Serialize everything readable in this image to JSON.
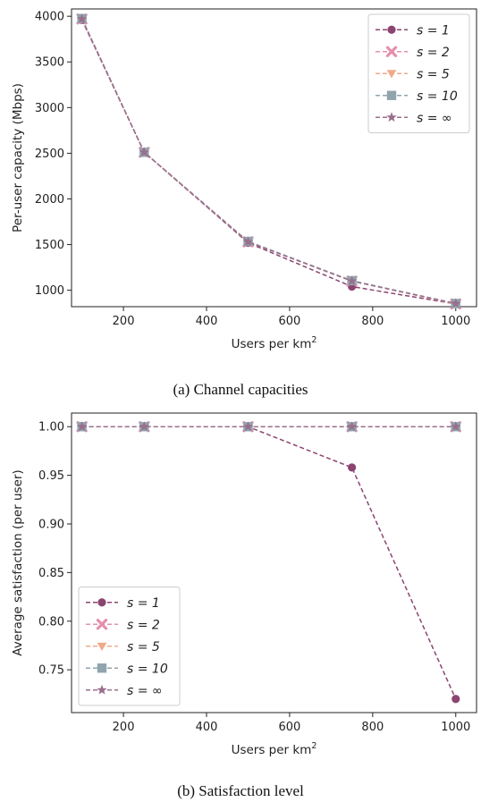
{
  "chart_data": [
    {
      "type": "line",
      "caption": "(a) Channel capacities",
      "xlabel": "Users per km",
      "xlabel_sup": "2",
      "ylabel": "Per-user capacity (Mbps)",
      "xlim": [
        75,
        1050
      ],
      "ylim": [
        820,
        4080
      ],
      "xticks": [
        200,
        400,
        600,
        800,
        1000
      ],
      "yticks": [
        1000,
        1500,
        2000,
        2500,
        3000,
        3500,
        4000
      ],
      "legend_loc": "upper right",
      "x": [
        100,
        250,
        500,
        750,
        1000
      ],
      "series": [
        {
          "name": "s = 1",
          "color": "#8b4570",
          "marker": "circle",
          "values": [
            3960,
            2510,
            1520,
            1040,
            850
          ]
        },
        {
          "name": "s = 2",
          "color": "#e58fad",
          "marker": "x",
          "values": [
            3970,
            2510,
            1530,
            1100,
            850
          ]
        },
        {
          "name": "s = 5",
          "color": "#eeab8c",
          "marker": "tri-down",
          "values": [
            3970,
            2510,
            1530,
            1100,
            850
          ]
        },
        {
          "name": "s = 10",
          "color": "#90a4ae",
          "marker": "square",
          "values": [
            3975,
            2510,
            1535,
            1105,
            855
          ]
        },
        {
          "name": "s = ∞",
          "color": "#9a6f8c",
          "marker": "star",
          "values": [
            3970,
            2510,
            1530,
            1100,
            855
          ]
        }
      ]
    },
    {
      "type": "line",
      "caption": "(b) Satisfaction level",
      "xlabel": "Users per km",
      "xlabel_sup": "2",
      "ylabel": "Average satisfaction (per user)",
      "xlim": [
        75,
        1050
      ],
      "ylim": [
        0.706,
        1.014
      ],
      "xticks": [
        200,
        400,
        600,
        800,
        1000
      ],
      "yticks": [
        0.75,
        0.8,
        0.85,
        0.9,
        0.95,
        1.0
      ],
      "legend_loc": "lower left",
      "x": [
        100,
        250,
        500,
        750,
        1000
      ],
      "series": [
        {
          "name": "s = 1",
          "color": "#8b4570",
          "marker": "circle",
          "values": [
            1.0,
            1.0,
            1.0,
            0.958,
            0.72
          ]
        },
        {
          "name": "s = 2",
          "color": "#e58fad",
          "marker": "x",
          "values": [
            1.0,
            1.0,
            1.0,
            1.0,
            1.0
          ]
        },
        {
          "name": "s = 5",
          "color": "#eeab8c",
          "marker": "tri-down",
          "values": [
            1.0,
            1.0,
            1.0,
            1.0,
            1.0
          ]
        },
        {
          "name": "s = 10",
          "color": "#90a4ae",
          "marker": "square",
          "values": [
            1.0,
            1.0,
            1.0,
            1.0,
            1.0
          ]
        },
        {
          "name": "s = ∞",
          "color": "#9a6f8c",
          "marker": "star",
          "values": [
            1.0,
            1.0,
            1.0,
            1.0,
            1.0
          ]
        }
      ]
    }
  ]
}
